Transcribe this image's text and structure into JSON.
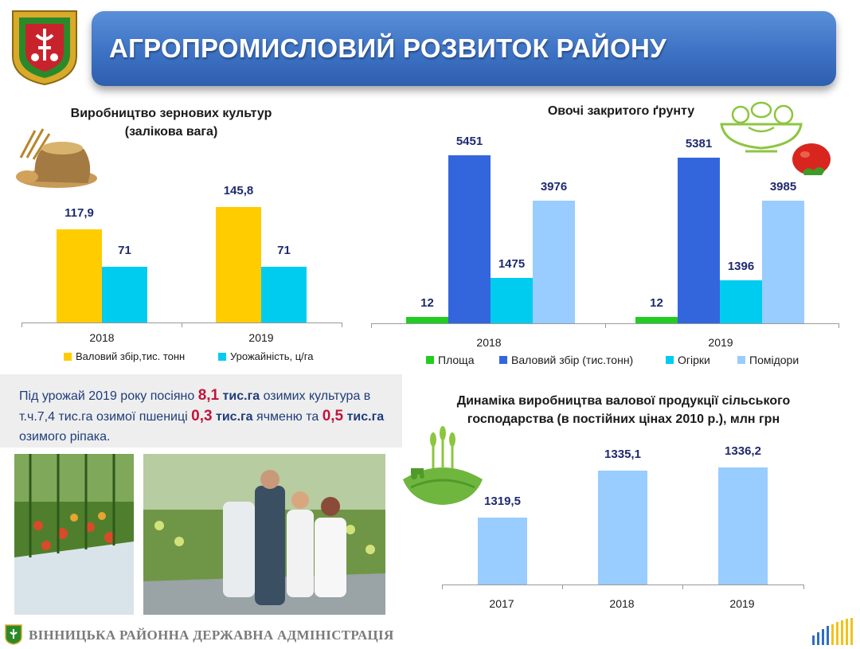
{
  "header": {
    "title": "АГРОПРОМИСЛОВИЙ РОЗВИТОК РАЙОНУ"
  },
  "footer": {
    "text": "ВІННИЦЬКА РАЙОННА ДЕРЖАВНА АДМІНІСТРАЦІЯ"
  },
  "note": {
    "p1": "Під урожай 2019 року посіяно ",
    "v1": "8,1",
    "u1": " тис.га",
    "p2": " озимих культура в т.ч.7,4 тис.га озимої пшениці ",
    "v2": "0,3",
    "u2": " тис.га",
    "p3": " ячменю та ",
    "v3": "0,5",
    "u3": " тис.га",
    "p4": " озимого ріпака."
  },
  "colors": {
    "gold": "#ffcc00",
    "cyan": "#00ccf0",
    "green": "#22cc22",
    "blue": "#3366dd",
    "lightblue": "#99ccff",
    "barlight": "#99ccff"
  },
  "chart_data": [
    {
      "type": "bar",
      "title": "Виробництво зернових культур",
      "subtitle": "(залікова вага)",
      "categories": [
        "2018",
        "2019"
      ],
      "series": [
        {
          "name": "Валовий збір,тис. тонн",
          "values": [
            117.9,
            145.8
          ],
          "labels": [
            "117,9",
            "145,8"
          ],
          "color": "#ffcc00"
        },
        {
          "name": "Урожайність, ц/га",
          "values": [
            71,
            71
          ],
          "labels": [
            "71",
            "71"
          ],
          "color": "#00ccf0"
        }
      ],
      "ylim": [
        0,
        200
      ],
      "legend": "bottom"
    },
    {
      "type": "bar",
      "title": "Овочі закритого ґрунту",
      "categories": [
        "2018",
        "2019"
      ],
      "series": [
        {
          "name": "Площа",
          "values": [
            12,
            12
          ],
          "labels": [
            "12",
            "12"
          ],
          "color": "#22cc22"
        },
        {
          "name": "Валовий збір (тис.тонн)",
          "values": [
            5451,
            5381
          ],
          "labels": [
            "5451",
            "5381"
          ],
          "color": "#3366dd"
        },
        {
          "name": "Огірки",
          "values": [
            1475,
            1396
          ],
          "labels": [
            "1475",
            "1396"
          ],
          "color": "#00ccf0"
        },
        {
          "name": "Помідори",
          "values": [
            3976,
            3985
          ],
          "labels": [
            "3976",
            "3985"
          ],
          "color": "#99ccff"
        }
      ],
      "ylim": [
        0,
        6000
      ],
      "legend": "bottom"
    },
    {
      "type": "bar",
      "title": "Динаміка виробництва валової продукції сільського господарства (в постійних  цінах 2010 р.), млн грн",
      "categories": [
        "2017",
        "2018",
        "2019"
      ],
      "values": [
        1319.5,
        1335.1,
        1336.2
      ],
      "labels": [
        "1319,5",
        "1335,1",
        "1336,2"
      ],
      "color": "#99ccff",
      "ylim": [
        1300,
        1340
      ]
    }
  ]
}
